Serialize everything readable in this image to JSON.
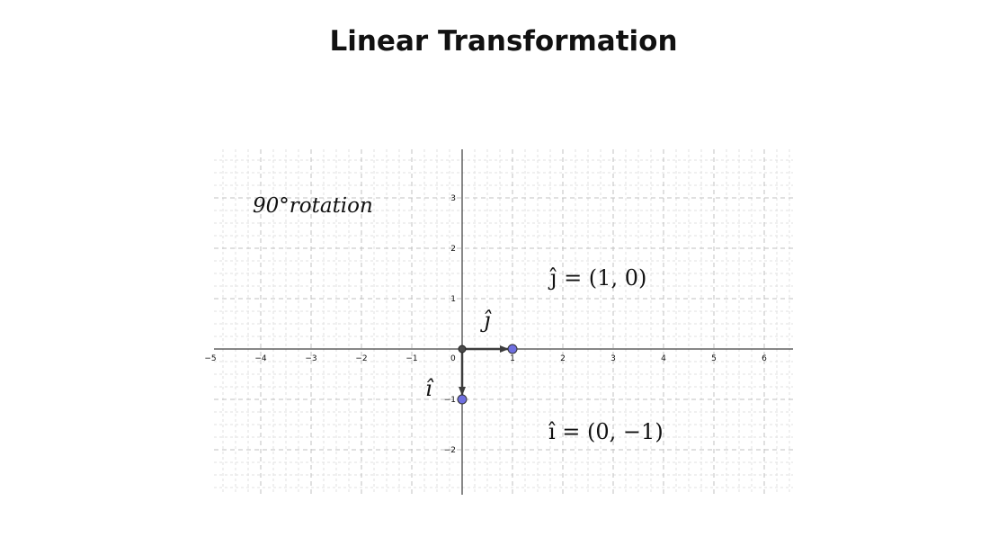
{
  "title": "Linear Transformation",
  "axes": {
    "x_ticks": [
      -5,
      -4,
      -3,
      -2,
      -1,
      1,
      2,
      3,
      4,
      5,
      6
    ],
    "y_ticks": [
      -2,
      -1,
      1,
      2,
      3
    ],
    "origin_label": "0"
  },
  "labels": {
    "rotation": "90°rotation",
    "j_hat": "ĵ",
    "i_hat": "î",
    "j_eq": "ĵ = (1, 0)",
    "i_eq": "î = (0, −1)"
  },
  "vectors": [
    {
      "name": "j-hat",
      "end": [
        1,
        0
      ]
    },
    {
      "name": "i-hat",
      "end": [
        0,
        -1
      ]
    }
  ],
  "colors": {
    "grid_major": "#c0c0c0",
    "grid_minor": "#e2e2e2",
    "axis": "#111111",
    "vector": "#3d3d3d",
    "point": "#6f6fe0",
    "origin_point": "#4a4a4a"
  }
}
